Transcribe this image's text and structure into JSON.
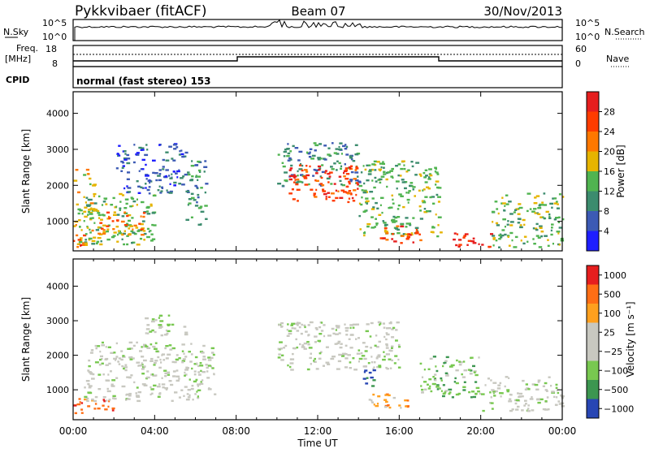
{
  "header": {
    "station": "Pykkvibaer (fitACF)",
    "beam": "Beam 07",
    "date": "30/Nov/2013"
  },
  "panels": {
    "nsky": {
      "left_label": "N.Sky",
      "right_label": "N.Search",
      "left_ticks": [
        "10^5",
        "10^0"
      ],
      "right_ticks": [
        "10^5",
        "10^0"
      ]
    },
    "freq": {
      "left_label_1": "Freq.",
      "left_label_2": "[MHz]",
      "right_label": "Nave",
      "left_ticks": [
        "18",
        "8"
      ],
      "right_ticks": [
        "60",
        "0"
      ]
    },
    "cpid": {
      "label": "CPID",
      "text": "normal (fast stereo) 153"
    }
  },
  "chart_data": [
    {
      "type": "heatmap",
      "name": "power",
      "ylabel": "Slant Range [km]",
      "yticks": [
        "1000",
        "2000",
        "3000",
        "4000"
      ],
      "ylim": [
        180,
        4600
      ],
      "colorbar": {
        "label": "Power [dB]",
        "ticks": [
          "4",
          "8",
          "12",
          "16",
          "20",
          "24",
          "28"
        ],
        "colors": [
          "#1e1eff",
          "#3c5ab4",
          "#3c8c6e",
          "#50b450",
          "#e6b400",
          "#ff7800",
          "#ff3c00",
          "#e61e1e"
        ]
      },
      "regions": [
        {
          "t0": 0.0,
          "t1": 1.0,
          "r0": 300,
          "r1": 2500,
          "level": 4
        },
        {
          "t0": 0.0,
          "t1": 0.6,
          "r0": 350,
          "r1": 700,
          "level": 6
        },
        {
          "t0": 0.5,
          "t1": 4.0,
          "r0": 350,
          "r1": 1800,
          "level": 3
        },
        {
          "t0": 1.0,
          "t1": 3.5,
          "r0": 600,
          "r1": 1300,
          "level": 5
        },
        {
          "t0": 2.0,
          "t1": 5.5,
          "r0": 1800,
          "r1": 3200,
          "level": 1
        },
        {
          "t0": 5.5,
          "t1": 6.5,
          "r0": 900,
          "r1": 2800,
          "level": 2
        },
        {
          "t0": 10.0,
          "t1": 14.0,
          "r0": 2000,
          "r1": 3200,
          "level": 2
        },
        {
          "t0": 10.5,
          "t1": 14.0,
          "r0": 1500,
          "r1": 2600,
          "level": 6
        },
        {
          "t0": 14.0,
          "t1": 18.0,
          "r0": 600,
          "r1": 2700,
          "level": 3
        },
        {
          "t0": 15.0,
          "t1": 17.0,
          "r0": 400,
          "r1": 900,
          "level": 6
        },
        {
          "t0": 18.5,
          "t1": 20.5,
          "r0": 300,
          "r1": 700,
          "level": 7
        },
        {
          "t0": 20.5,
          "t1": 24.0,
          "r0": 300,
          "r1": 1800,
          "level": 3
        }
      ]
    },
    {
      "type": "heatmap",
      "name": "velocity",
      "xlabel": "Time UT",
      "xticks": [
        "00:00",
        "04:00",
        "08:00",
        "12:00",
        "16:00",
        "20:00",
        "00:00"
      ],
      "xlim": [
        0,
        24
      ],
      "ylabel": "Slant Range [km]",
      "yticks": [
        "1000",
        "2000",
        "3000",
        "4000"
      ],
      "ylim": [
        180,
        4600
      ],
      "colorbar": {
        "label": "Velocity [m s⁻¹]",
        "ticks": [
          "1000",
          "500",
          "100",
          "25",
          "−25",
          "−100",
          "−500",
          "−1000"
        ],
        "colors": [
          "#2846b4",
          "#3c9650",
          "#78c850",
          "#c8c8c0",
          "#c8c8c0",
          "#ffa01e",
          "#ff6e14",
          "#e61e1e"
        ]
      },
      "regions": [
        {
          "t0": 0.0,
          "t1": 2.0,
          "r0": 350,
          "r1": 800,
          "level": 6
        },
        {
          "t0": 0.5,
          "t1": 7.0,
          "r0": 700,
          "r1": 2400,
          "level": 3
        },
        {
          "t0": 3.5,
          "t1": 5.5,
          "r0": 2600,
          "r1": 3200,
          "level": 3
        },
        {
          "t0": 10.0,
          "t1": 16.0,
          "r0": 1600,
          "r1": 3000,
          "level": 3
        },
        {
          "t0": 14.2,
          "t1": 14.7,
          "r0": 1000,
          "r1": 1800,
          "level": 0
        },
        {
          "t0": 14.5,
          "t1": 17.0,
          "r0": 500,
          "r1": 900,
          "level": 5
        },
        {
          "t0": 17.0,
          "t1": 20.0,
          "r0": 800,
          "r1": 2000,
          "level": 2
        },
        {
          "t0": 20.0,
          "t1": 24.0,
          "r0": 400,
          "r1": 1400,
          "level": 3
        }
      ]
    }
  ]
}
